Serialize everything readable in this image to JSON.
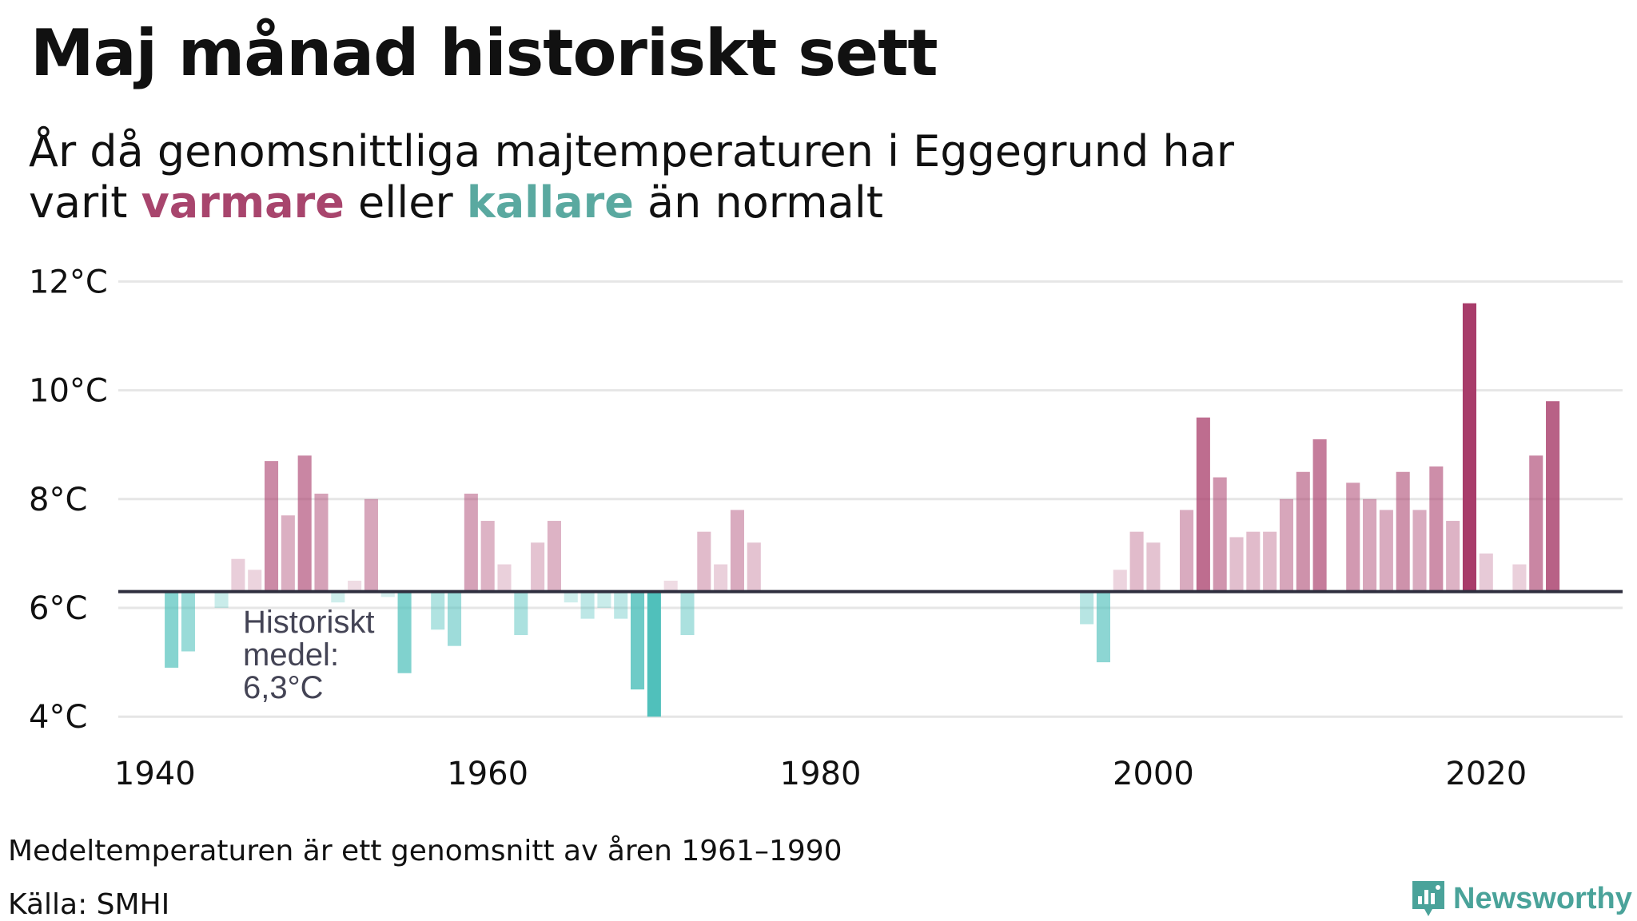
{
  "title": "Maj månad historiskt sett",
  "subtitle": {
    "line1": "År då genomsnittliga majtemperaturen i Eggegrund har",
    "prefix": "varit ",
    "warm_word": "varmare",
    "middle": " eller ",
    "cold_word": "kallare",
    "suffix": " än normalt"
  },
  "colors": {
    "warm": "#a8456d",
    "cold": "#5aa9a0",
    "bar_warm": "#a83c6a",
    "bar_cold": "#4cbfba",
    "baseline": "#2e2e3e",
    "grid": "#e6e6e6",
    "brand": "#4aa39a"
  },
  "chart_data": {
    "type": "bar",
    "baseline": 6.3,
    "ylim": [
      3.9,
      12.3
    ],
    "xlim": [
      1937.8,
      2028.2
    ],
    "yticks": [
      {
        "value": 4,
        "label": "4°C"
      },
      {
        "value": 6,
        "label": "6°C"
      },
      {
        "value": 8,
        "label": "8°C"
      },
      {
        "value": 10,
        "label": "10°C"
      },
      {
        "value": 12,
        "label": "12°C"
      }
    ],
    "xticks": [
      {
        "value": 1940,
        "label": "1940"
      },
      {
        "value": 1960,
        "label": "1960"
      },
      {
        "value": 1980,
        "label": "1980"
      },
      {
        "value": 2000,
        "label": "2000"
      },
      {
        "value": 2020,
        "label": "2020"
      }
    ],
    "annotation": {
      "lines": [
        "Historiskt",
        "medel:",
        "6,3°C"
      ]
    },
    "x": [
      1941,
      1942,
      1944,
      1945,
      1946,
      1947,
      1948,
      1949,
      1950,
      1951,
      1952,
      1953,
      1954,
      1955,
      1957,
      1958,
      1959,
      1960,
      1961,
      1962,
      1963,
      1964,
      1965,
      1966,
      1967,
      1968,
      1969,
      1970,
      1971,
      1972,
      1973,
      1974,
      1975,
      1976,
      1996,
      1997,
      1998,
      1999,
      2000,
      2002,
      2003,
      2004,
      2005,
      2006,
      2007,
      2008,
      2009,
      2010,
      2012,
      2013,
      2014,
      2015,
      2016,
      2017,
      2018,
      2019,
      2020,
      2022,
      2023,
      2024
    ],
    "values": [
      4.9,
      5.2,
      6.0,
      6.9,
      6.7,
      8.7,
      7.7,
      8.8,
      8.1,
      6.1,
      6.5,
      8.0,
      6.2,
      4.8,
      5.6,
      5.3,
      8.1,
      7.6,
      6.8,
      5.5,
      7.2,
      7.6,
      6.1,
      5.8,
      6.0,
      5.8,
      4.5,
      4.0,
      6.5,
      5.5,
      7.4,
      6.8,
      7.8,
      7.2,
      5.7,
      5.0,
      6.7,
      7.4,
      7.2,
      7.8,
      9.5,
      8.4,
      7.3,
      7.4,
      7.4,
      8.0,
      8.5,
      9.1,
      8.3,
      8.0,
      7.8,
      8.5,
      7.8,
      8.6,
      7.6,
      11.6,
      7.0,
      6.8,
      8.8,
      9.8
    ]
  },
  "footer": {
    "note": "Medeltemperaturen är ett genomsnitt av åren 1961–1990",
    "source": "Källa: SMHI",
    "brand": "Newsworthy"
  }
}
